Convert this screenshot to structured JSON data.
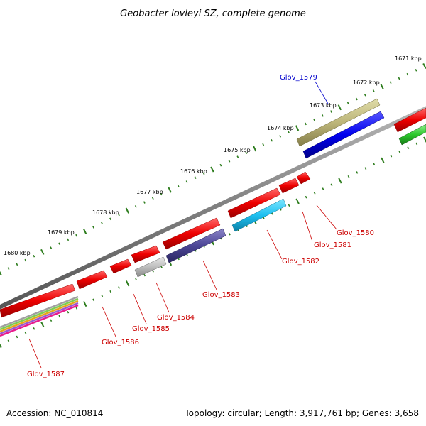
{
  "header": {
    "title": "Geobacter lovleyi SZ, complete genome"
  },
  "footer": {
    "accession": "Accession: NC_010814",
    "summary": "Topology: circular; Length: 3,917,761 bp; Genes: 3,658"
  },
  "ticks": {
    "labels": [
      "1671 kbp",
      "1672 kbp",
      "1673 kbp",
      "1674 kbp",
      "1675 kbp",
      "1676 kbp",
      "1677 kbp",
      "1678 kbp",
      "1679 kbp",
      "1680 kbp"
    ]
  },
  "genes": [
    {
      "label": "Glov_1579",
      "color": "#0000cc"
    },
    {
      "label": "Glov_1580",
      "color": "#cc0000"
    },
    {
      "label": "Glov_1581",
      "color": "#cc0000"
    },
    {
      "label": "Glov_1582",
      "color": "#cc0000"
    },
    {
      "label": "Glov_1583",
      "color": "#cc0000"
    },
    {
      "label": "Glov_1584",
      "color": "#cc0000"
    },
    {
      "label": "Glov_1585",
      "color": "#cc0000"
    },
    {
      "label": "Glov_1586",
      "color": "#cc0000"
    },
    {
      "label": "Glov_1587",
      "color": "#cc0000"
    }
  ],
  "colors": {
    "backbone": "#808080",
    "cds_forward": "#ee0000",
    "tick_major": "#2e7d1e",
    "tick_minor": "#2e7d1e"
  }
}
